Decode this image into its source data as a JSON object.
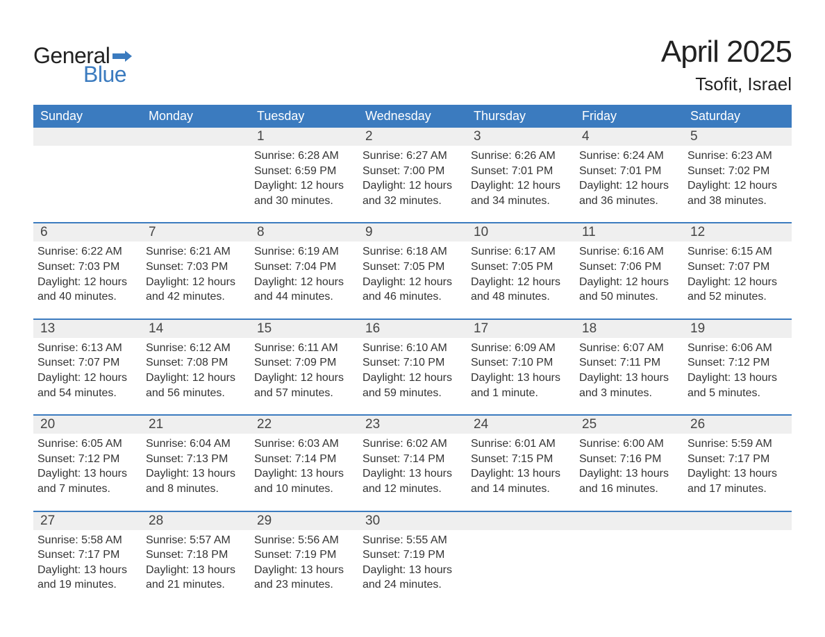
{
  "logo": {
    "general": "General",
    "blue": "Blue",
    "flag_color": "#3b7bbf"
  },
  "title": "April 2025",
  "location": "Tsofit, Israel",
  "header_bg": "#3b7bbf",
  "daynum_bg": "#efefef",
  "weekdays": [
    "Sunday",
    "Monday",
    "Tuesday",
    "Wednesday",
    "Thursday",
    "Friday",
    "Saturday"
  ],
  "weeks": [
    [
      {
        "n": "",
        "empty": true
      },
      {
        "n": "",
        "empty": true
      },
      {
        "n": "1",
        "sr": "Sunrise: 6:28 AM",
        "ss": "Sunset: 6:59 PM",
        "d1": "Daylight: 12 hours",
        "d2": "and 30 minutes."
      },
      {
        "n": "2",
        "sr": "Sunrise: 6:27 AM",
        "ss": "Sunset: 7:00 PM",
        "d1": "Daylight: 12 hours",
        "d2": "and 32 minutes."
      },
      {
        "n": "3",
        "sr": "Sunrise: 6:26 AM",
        "ss": "Sunset: 7:01 PM",
        "d1": "Daylight: 12 hours",
        "d2": "and 34 minutes."
      },
      {
        "n": "4",
        "sr": "Sunrise: 6:24 AM",
        "ss": "Sunset: 7:01 PM",
        "d1": "Daylight: 12 hours",
        "d2": "and 36 minutes."
      },
      {
        "n": "5",
        "sr": "Sunrise: 6:23 AM",
        "ss": "Sunset: 7:02 PM",
        "d1": "Daylight: 12 hours",
        "d2": "and 38 minutes."
      }
    ],
    [
      {
        "n": "6",
        "sr": "Sunrise: 6:22 AM",
        "ss": "Sunset: 7:03 PM",
        "d1": "Daylight: 12 hours",
        "d2": "and 40 minutes."
      },
      {
        "n": "7",
        "sr": "Sunrise: 6:21 AM",
        "ss": "Sunset: 7:03 PM",
        "d1": "Daylight: 12 hours",
        "d2": "and 42 minutes."
      },
      {
        "n": "8",
        "sr": "Sunrise: 6:19 AM",
        "ss": "Sunset: 7:04 PM",
        "d1": "Daylight: 12 hours",
        "d2": "and 44 minutes."
      },
      {
        "n": "9",
        "sr": "Sunrise: 6:18 AM",
        "ss": "Sunset: 7:05 PM",
        "d1": "Daylight: 12 hours",
        "d2": "and 46 minutes."
      },
      {
        "n": "10",
        "sr": "Sunrise: 6:17 AM",
        "ss": "Sunset: 7:05 PM",
        "d1": "Daylight: 12 hours",
        "d2": "and 48 minutes."
      },
      {
        "n": "11",
        "sr": "Sunrise: 6:16 AM",
        "ss": "Sunset: 7:06 PM",
        "d1": "Daylight: 12 hours",
        "d2": "and 50 minutes."
      },
      {
        "n": "12",
        "sr": "Sunrise: 6:15 AM",
        "ss": "Sunset: 7:07 PM",
        "d1": "Daylight: 12 hours",
        "d2": "and 52 minutes."
      }
    ],
    [
      {
        "n": "13",
        "sr": "Sunrise: 6:13 AM",
        "ss": "Sunset: 7:07 PM",
        "d1": "Daylight: 12 hours",
        "d2": "and 54 minutes."
      },
      {
        "n": "14",
        "sr": "Sunrise: 6:12 AM",
        "ss": "Sunset: 7:08 PM",
        "d1": "Daylight: 12 hours",
        "d2": "and 56 minutes."
      },
      {
        "n": "15",
        "sr": "Sunrise: 6:11 AM",
        "ss": "Sunset: 7:09 PM",
        "d1": "Daylight: 12 hours",
        "d2": "and 57 minutes."
      },
      {
        "n": "16",
        "sr": "Sunrise: 6:10 AM",
        "ss": "Sunset: 7:10 PM",
        "d1": "Daylight: 12 hours",
        "d2": "and 59 minutes."
      },
      {
        "n": "17",
        "sr": "Sunrise: 6:09 AM",
        "ss": "Sunset: 7:10 PM",
        "d1": "Daylight: 13 hours",
        "d2": "and 1 minute."
      },
      {
        "n": "18",
        "sr": "Sunrise: 6:07 AM",
        "ss": "Sunset: 7:11 PM",
        "d1": "Daylight: 13 hours",
        "d2": "and 3 minutes."
      },
      {
        "n": "19",
        "sr": "Sunrise: 6:06 AM",
        "ss": "Sunset: 7:12 PM",
        "d1": "Daylight: 13 hours",
        "d2": "and 5 minutes."
      }
    ],
    [
      {
        "n": "20",
        "sr": "Sunrise: 6:05 AM",
        "ss": "Sunset: 7:12 PM",
        "d1": "Daylight: 13 hours",
        "d2": "and 7 minutes."
      },
      {
        "n": "21",
        "sr": "Sunrise: 6:04 AM",
        "ss": "Sunset: 7:13 PM",
        "d1": "Daylight: 13 hours",
        "d2": "and 8 minutes."
      },
      {
        "n": "22",
        "sr": "Sunrise: 6:03 AM",
        "ss": "Sunset: 7:14 PM",
        "d1": "Daylight: 13 hours",
        "d2": "and 10 minutes."
      },
      {
        "n": "23",
        "sr": "Sunrise: 6:02 AM",
        "ss": "Sunset: 7:14 PM",
        "d1": "Daylight: 13 hours",
        "d2": "and 12 minutes."
      },
      {
        "n": "24",
        "sr": "Sunrise: 6:01 AM",
        "ss": "Sunset: 7:15 PM",
        "d1": "Daylight: 13 hours",
        "d2": "and 14 minutes."
      },
      {
        "n": "25",
        "sr": "Sunrise: 6:00 AM",
        "ss": "Sunset: 7:16 PM",
        "d1": "Daylight: 13 hours",
        "d2": "and 16 minutes."
      },
      {
        "n": "26",
        "sr": "Sunrise: 5:59 AM",
        "ss": "Sunset: 7:17 PM",
        "d1": "Daylight: 13 hours",
        "d2": "and 17 minutes."
      }
    ],
    [
      {
        "n": "27",
        "sr": "Sunrise: 5:58 AM",
        "ss": "Sunset: 7:17 PM",
        "d1": "Daylight: 13 hours",
        "d2": "and 19 minutes."
      },
      {
        "n": "28",
        "sr": "Sunrise: 5:57 AM",
        "ss": "Sunset: 7:18 PM",
        "d1": "Daylight: 13 hours",
        "d2": "and 21 minutes."
      },
      {
        "n": "29",
        "sr": "Sunrise: 5:56 AM",
        "ss": "Sunset: 7:19 PM",
        "d1": "Daylight: 13 hours",
        "d2": "and 23 minutes."
      },
      {
        "n": "30",
        "sr": "Sunrise: 5:55 AM",
        "ss": "Sunset: 7:19 PM",
        "d1": "Daylight: 13 hours",
        "d2": "and 24 minutes."
      },
      {
        "n": "",
        "empty": true
      },
      {
        "n": "",
        "empty": true
      },
      {
        "n": "",
        "empty": true
      }
    ]
  ]
}
